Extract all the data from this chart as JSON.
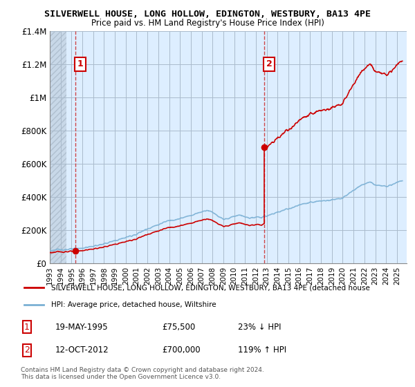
{
  "title": "SILVERWELL HOUSE, LONG HOLLOW, EDINGTON, WESTBURY, BA13 4PE",
  "subtitle": "Price paid vs. HM Land Registry's House Price Index (HPI)",
  "ylim": [
    0,
    1400000
  ],
  "yticks": [
    0,
    200000,
    400000,
    600000,
    800000,
    1000000,
    1200000,
    1400000
  ],
  "ytick_labels": [
    "£0",
    "£200K",
    "£400K",
    "£600K",
    "£800K",
    "£1M",
    "£1.2M",
    "£1.4M"
  ],
  "xlim_start": 1993.0,
  "xlim_end": 2025.9,
  "xticks": [
    1993,
    1994,
    1995,
    1996,
    1997,
    1998,
    1999,
    2000,
    2001,
    2002,
    2003,
    2004,
    2005,
    2006,
    2007,
    2008,
    2009,
    2010,
    2011,
    2012,
    2013,
    2014,
    2015,
    2016,
    2017,
    2018,
    2019,
    2020,
    2021,
    2022,
    2023,
    2024,
    2025
  ],
  "sale1_x": 1995.37,
  "sale1_y": 75500,
  "sale1_label": "1",
  "sale2_x": 2012.79,
  "sale2_y": 700000,
  "sale2_label": "2",
  "property_color": "#cc0000",
  "hpi_color": "#7ab0d4",
  "bg_plot_color": "#ddeeff",
  "background_color": "#ffffff",
  "grid_color": "#aabbcc",
  "legend_property": "SILVERWELL HOUSE, LONG HOLLOW, EDINGTON, WESTBURY, BA13 4PE (detached house",
  "legend_hpi": "HPI: Average price, detached house, Wiltshire",
  "annotation1_date": "19-MAY-1995",
  "annotation1_price": "£75,500",
  "annotation1_hpi": "23% ↓ HPI",
  "annotation2_date": "12-OCT-2012",
  "annotation2_price": "£700,000",
  "annotation2_hpi": "119% ↑ HPI",
  "footer": "Contains HM Land Registry data © Crown copyright and database right 2024.\nThis data is licensed under the Open Government Licence v3.0."
}
